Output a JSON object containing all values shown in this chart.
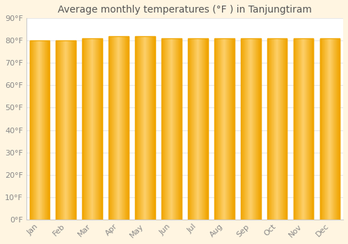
{
  "title": "Average monthly temperatures (°F ) in Tanjungtiram",
  "months": [
    "Jan",
    "Feb",
    "Mar",
    "Apr",
    "May",
    "Jun",
    "Jul",
    "Aug",
    "Sep",
    "Oct",
    "Nov",
    "Dec"
  ],
  "values": [
    80,
    80,
    81,
    82,
    82,
    81,
    81,
    81,
    81,
    81,
    81,
    81
  ],
  "bar_color_center": "#FDD06A",
  "bar_color_edge": "#F0A500",
  "background_color": "#FFFFFF",
  "fig_background_color": "#FFF5E1",
  "grid_color": "#E8E8E8",
  "text_color": "#888888",
  "title_color": "#555555",
  "ylim": [
    0,
    90
  ],
  "ytick_step": 10,
  "title_fontsize": 10,
  "tick_fontsize": 8
}
